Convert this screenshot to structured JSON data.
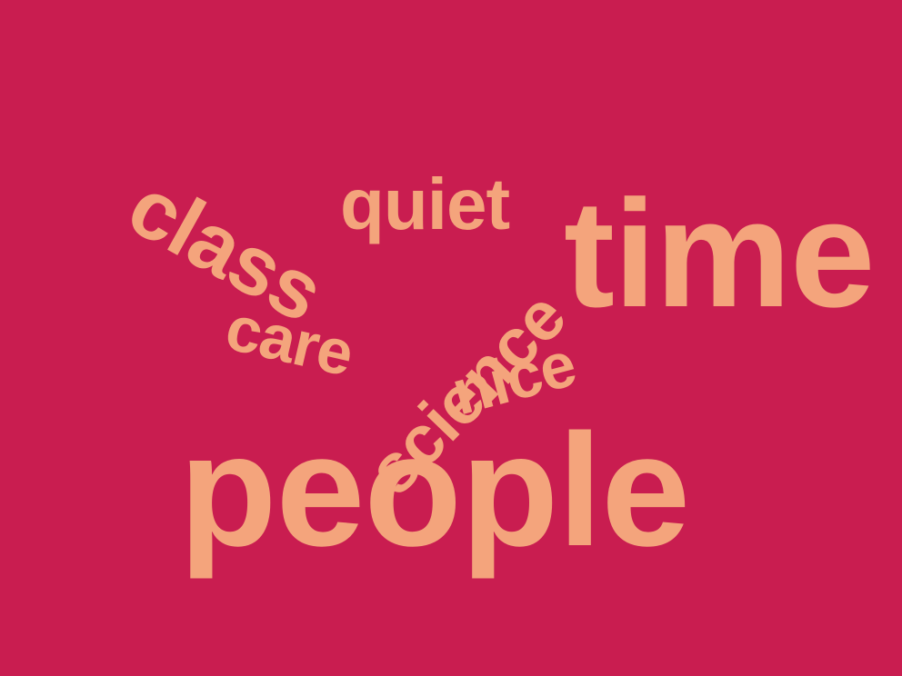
{
  "word_cloud": {
    "background_color": "#C91D50",
    "text_color": "#F4A47C",
    "words": [
      {
        "id": "people",
        "text": "people"
      },
      {
        "id": "time",
        "text": "time"
      },
      {
        "id": "class",
        "text": "class"
      },
      {
        "id": "quiet",
        "text": "quiet"
      },
      {
        "id": "care",
        "text": "care"
      },
      {
        "id": "science",
        "text": "science"
      },
      {
        "id": "nice",
        "text": "nice"
      }
    ]
  }
}
